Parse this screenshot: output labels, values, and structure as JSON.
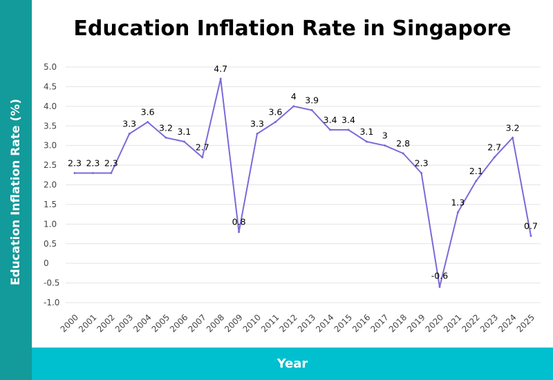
{
  "chart_data": {
    "type": "line",
    "title": "Education Inflation Rate in Singapore",
    "xlabel": "Year",
    "ylabel": "Education Inflation Rate (%)",
    "ylim": [
      -1.0,
      5.0
    ],
    "y_ticks": [
      "5.0",
      "4.5",
      "4.0",
      "3.5",
      "3.0",
      "2.5",
      "2.0",
      "1.5",
      "1.0",
      "0.5",
      "0",
      "-0.5",
      "-1.0"
    ],
    "grid": true,
    "categories": [
      "2000",
      "2001",
      "2002",
      "2003",
      "2004",
      "2005",
      "2006",
      "2007",
      "2008",
      "2009",
      "2010",
      "2011",
      "2012",
      "2013",
      "2014",
      "2015",
      "2016",
      "2017",
      "2018",
      "2019",
      "2020",
      "2021",
      "2022",
      "2023",
      "2024",
      "2025"
    ],
    "values": [
      2.3,
      2.3,
      2.3,
      3.3,
      3.6,
      3.2,
      3.1,
      2.7,
      4.7,
      0.8,
      3.3,
      3.6,
      4.0,
      3.9,
      3.4,
      3.4,
      3.1,
      3.0,
      2.8,
      2.3,
      -0.6,
      1.3,
      2.1,
      2.7,
      3.2,
      0.7
    ],
    "data_labels": [
      "2.3",
      "2.3",
      "2.3",
      "3.3",
      "3.6",
      "3.2",
      "3.1",
      "2.7",
      "4.7",
      "0.8",
      "3.3",
      "3.6",
      "4",
      "3.9",
      "3.4",
      "3.4",
      "3.1",
      "3",
      "2.8",
      "2.3",
      "-0.6",
      "1.3",
      "2.1",
      "2.7",
      "3.2",
      "0.7"
    ],
    "line_color": "#7b68d9",
    "band_left_color": "#139a9a",
    "band_bottom_color": "#00bfcf"
  }
}
